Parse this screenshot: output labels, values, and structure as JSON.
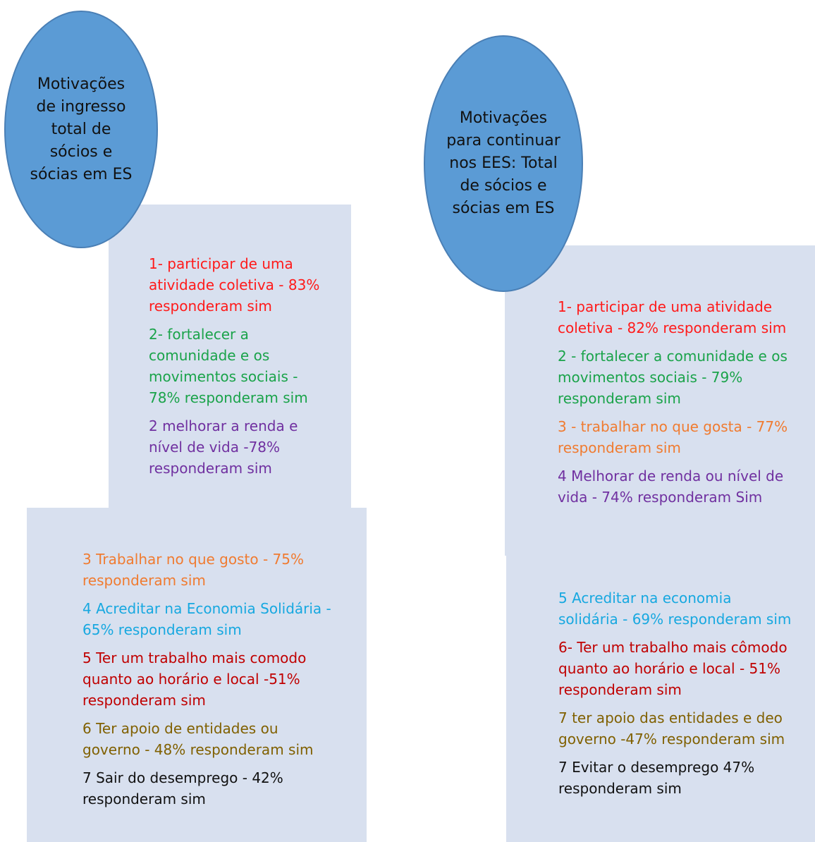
{
  "left": {
    "title_lines": [
      "Motivações",
      "de ingresso",
      "total de",
      "sócios e",
      "sócias em ES"
    ],
    "upper_items": [
      {
        "text": "1- participar de uma\natividade coletiva - 83%\nresponderam sim",
        "color": "#ff1a1a"
      },
      {
        "text": "2- fortalecer a\ncomunidade e os\nmovimentos sociais -\n78% responderam sim",
        "color": "#1aa34a"
      },
      {
        "text": "2 melhorar a renda e\nnível de vida -78%\nresponderam sim",
        "color": "#7030a0"
      }
    ],
    "lower_items": [
      {
        "text": "3 Trabalhar no que gosto - 75%\nresponderam sim",
        "color": "#f07b30"
      },
      {
        "text": "4 Acreditar na Economia Solidária -\n65% responderam sim",
        "color": "#17a8e0"
      },
      {
        "text": "5 Ter um trabalho mais comodo\nquanto ao horário e local -51%\nresponderam sim",
        "color": "#c00000"
      },
      {
        "text": "6 Ter apoio de entidades ou\ngoverno - 48% responderam sim",
        "color": "#806000"
      },
      {
        "text": "7 Sair do desemprego - 42%\nresponderam sim",
        "color": "#111111"
      }
    ]
  },
  "right": {
    "title_lines": [
      "Motivações",
      "para continuar",
      "nos EES:  Total",
      "de sócios e",
      "sócias em ES"
    ],
    "upper_items": [
      {
        "text": "1- participar de uma atividade\ncoletiva - 82% responderam sim",
        "color": "#ff1a1a"
      },
      {
        "text": "2 - fortalecer a comunidade e os\nmovimentos sociais - 79%\nresponderam sim",
        "color": "#1aa34a"
      },
      {
        "text": "3 - trabalhar no que gosta - 77%\nresponderam sim",
        "color": "#f07b30"
      },
      {
        "text": "4 Melhorar de renda ou nível de\nvida -  74% responderam Sim",
        "color": "#7030a0"
      }
    ],
    "lower_items": [
      {
        "text": "5 Acreditar na economia\nsolidária - 69% responderam sim",
        "color": "#17a8e0"
      },
      {
        "text": "6- Ter um trabalho mais cômodo\nquanto ao horário e local - 51%\nresponderam sim",
        "color": "#c00000"
      },
      {
        "text": "7 ter apoio das entidades e deo\ngoverno -47% responderam sim",
        "color": "#806000"
      },
      {
        "text": "7 Evitar o desemprego 47%\nresponderam sim",
        "color": "#111111"
      }
    ]
  }
}
